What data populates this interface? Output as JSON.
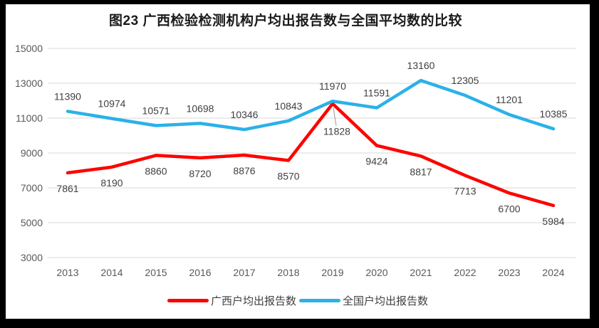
{
  "title": "图23 广西检验检测机构户均出报告数与全国平均数的比较",
  "chart_data": {
    "type": "line",
    "categories": [
      "2013",
      "2014",
      "2015",
      "2016",
      "2017",
      "2018",
      "2019",
      "2020",
      "2021",
      "2022",
      "2023",
      "2024"
    ],
    "series": [
      {
        "key": "guangxi",
        "name": "广西户均出报告数",
        "color": "#FF0000",
        "label_position": "below",
        "callout_index": 6,
        "values": [
          7861,
          8190,
          8860,
          8720,
          8876,
          8570,
          11828,
          9424,
          8817,
          7713,
          6700,
          5984
        ]
      },
      {
        "key": "national",
        "name": "全国户均出报告数",
        "color": "#2BB1E8",
        "label_position": "above",
        "values": [
          11390,
          10974,
          10571,
          10698,
          10346,
          10843,
          11970,
          11591,
          13160,
          12305,
          11201,
          10385
        ]
      }
    ],
    "ylim": [
      3000,
      15000
    ],
    "yticks": [
      3000,
      5000,
      7000,
      9000,
      11000,
      13000,
      15000
    ],
    "grid": true,
    "legend_position": "bottom",
    "xlabel": "",
    "ylabel": "",
    "colors": {
      "gridline": "#D9D9D9",
      "axis_text": "#595959",
      "data_label": "#404040",
      "title_text": "#1A1A1A",
      "callout_line": "#A6A6A6",
      "frame": "#000000",
      "background": "#FFFFFF"
    }
  }
}
